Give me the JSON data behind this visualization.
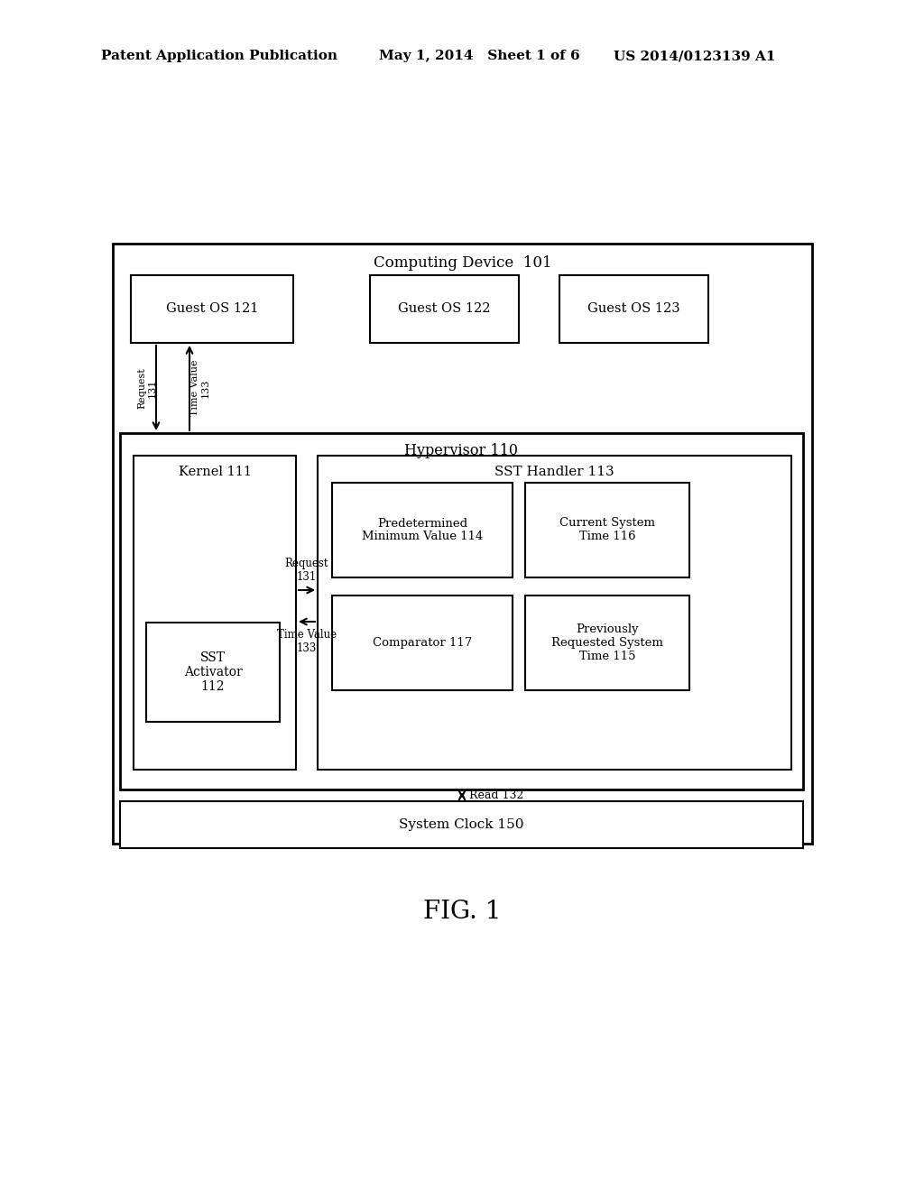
{
  "header_left": "Patent Application Publication",
  "header_mid": "May 1, 2014   Sheet 1 of 6",
  "header_right": "US 2014/0123139 A1",
  "fig_label": "FIG. 1",
  "bg_color": "#ffffff",
  "computing_device_label": "Computing Device  101",
  "hypervisor_label": "Hypervisor 110",
  "kernel_label": "Kernel 111",
  "sst_handler_label": "SST Handler 113",
  "guest_os_121": "Guest OS 121",
  "guest_os_122": "Guest OS 122",
  "guest_os_123": "Guest OS 123",
  "sst_activator_label": "SST\nActivator\n112",
  "predet_min_label": "Predetermined\nMinimum Value 114",
  "current_sys_time_label": "Current System\nTime 116",
  "comparator_label": "Comparator 117",
  "prev_req_sys_time_label": "Previously\nRequested System\nTime 115",
  "system_clock_label": "System Clock 150",
  "arrow_read_132": "Read 132"
}
